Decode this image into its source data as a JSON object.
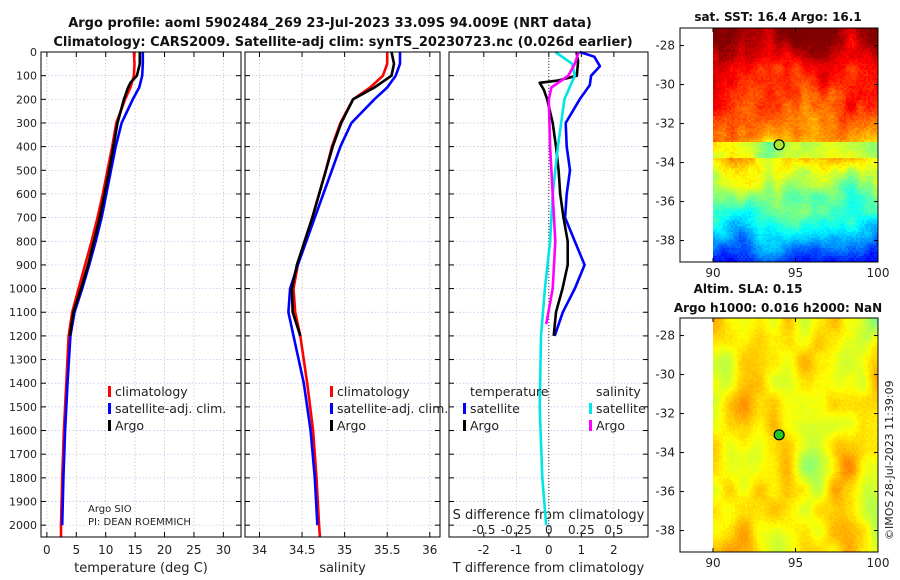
{
  "title_lines": [
    "Argo profile: aoml 5902484_269 23-Jul-2023 33.09S 94.009E (NRT data)",
    "Climatology: CARS2009. Satellite-adj clim: synTS_20230723.nc (0.026d earlier)"
  ],
  "colors": {
    "climatology": "#ff0000",
    "satellite": "#0000ff",
    "argo": "#000000",
    "sal_satellite": "#00e5e5",
    "sal_argo": "#ff00ff"
  },
  "depth_axis": {
    "ylim": [
      0,
      2050
    ],
    "ticks": [
      0,
      100,
      200,
      300,
      400,
      500,
      600,
      700,
      800,
      900,
      1000,
      1100,
      1200,
      1300,
      1400,
      1500,
      1600,
      1700,
      1800,
      1900,
      2000
    ]
  },
  "chart_data": [
    {
      "type": "line",
      "xlabel": "temperature (deg C)",
      "ylabel": "depth",
      "xlim": [
        -1,
        33
      ],
      "xticks": [
        0,
        5,
        10,
        15,
        20,
        25,
        30
      ],
      "legend": {
        "placement": "lower-middle",
        "entries": [
          "climatology",
          "satellite-adj. clim.",
          "Argo"
        ]
      },
      "annotation": [
        "Argo SIO",
        "PI: DEAN ROEMMICH"
      ],
      "series": [
        {
          "name": "climatology",
          "color": "#ff0000",
          "depth": [
            0,
            50,
            100,
            150,
            200,
            300,
            400,
            500,
            600,
            700,
            800,
            900,
            1000,
            1100,
            1200,
            1400,
            1600,
            1800,
            2000,
            2050
          ],
          "values": [
            14.8,
            14.9,
            14.8,
            14.2,
            13.3,
            11.8,
            11.1,
            10.3,
            9.5,
            8.6,
            7.6,
            6.5,
            5.4,
            4.3,
            3.7,
            3.3,
            2.9,
            2.6,
            2.4,
            2.4
          ]
        },
        {
          "name": "satellite-adj. clim.",
          "color": "#0000ff",
          "depth": [
            0,
            50,
            100,
            150,
            200,
            300,
            400,
            500,
            600,
            700,
            800,
            900,
            1000,
            1100,
            1200,
            1400,
            1600,
            1800,
            2000
          ],
          "values": [
            16.3,
            16.3,
            16.2,
            15.7,
            14.6,
            12.7,
            11.7,
            10.9,
            10.1,
            9.3,
            8.3,
            7.2,
            6.0,
            4.7,
            4.0,
            3.5,
            3.1,
            2.8,
            2.6
          ]
        },
        {
          "name": "Argo",
          "color": "#000000",
          "depth": [
            0,
            50,
            100,
            130,
            150,
            200,
            300,
            400,
            500,
            600,
            700,
            800,
            900,
            1000,
            1100,
            1200
          ],
          "values": [
            15.8,
            15.8,
            15.3,
            14.2,
            13.8,
            13.1,
            12.0,
            11.3,
            10.6,
            9.8,
            9.0,
            8.0,
            7.0,
            5.8,
            4.5,
            3.9
          ]
        }
      ]
    },
    {
      "type": "line",
      "xlabel": "salinity",
      "xlim": [
        33.83,
        36.12
      ],
      "xticks": [
        34,
        34.5,
        35,
        35.5,
        36
      ],
      "legend": {
        "placement": "lower-middle",
        "entries": [
          "climatology",
          "satellite-adj. clim.",
          "Argo"
        ]
      },
      "series": [
        {
          "name": "climatology",
          "color": "#ff0000",
          "depth": [
            0,
            50,
            100,
            150,
            200,
            300,
            400,
            500,
            600,
            700,
            800,
            900,
            1000,
            1100,
            1200,
            1400,
            1600,
            1800,
            2000,
            2050
          ],
          "values": [
            35.5,
            35.5,
            35.45,
            35.3,
            35.1,
            34.95,
            34.85,
            34.78,
            34.7,
            34.62,
            34.53,
            34.45,
            34.4,
            34.42,
            34.48,
            34.56,
            34.63,
            34.67,
            34.7,
            34.71
          ]
        },
        {
          "name": "satellite-adj. clim.",
          "color": "#0000ff",
          "depth": [
            0,
            50,
            100,
            150,
            200,
            300,
            400,
            500,
            600,
            700,
            800,
            900,
            1000,
            1100,
            1200,
            1400,
            1600,
            1800,
            2000
          ],
          "values": [
            35.65,
            35.65,
            35.6,
            35.5,
            35.35,
            35.08,
            34.95,
            34.85,
            34.75,
            34.65,
            34.55,
            34.45,
            34.36,
            34.34,
            34.4,
            34.52,
            34.6,
            34.65,
            34.68
          ]
        },
        {
          "name": "Argo",
          "color": "#000000",
          "depth": [
            0,
            50,
            100,
            150,
            200,
            300,
            400,
            500,
            600,
            700,
            800,
            900,
            1000,
            1100,
            1200
          ],
          "values": [
            35.55,
            35.58,
            35.55,
            35.35,
            35.1,
            34.96,
            34.86,
            34.78,
            34.7,
            34.62,
            34.53,
            34.44,
            34.38,
            34.39,
            34.48
          ]
        }
      ]
    },
    {
      "type": "line",
      "xlabel": "T difference from climatology",
      "xlim": [
        -3.07,
        3.05
      ],
      "xticks": [
        -2,
        -1,
        0,
        1,
        2
      ],
      "x2label": "S difference from climatology",
      "x2ticks": [
        -0.5,
        -0.25,
        0,
        0.25,
        0.5
      ],
      "x2ticklabels": [
        "-0.5",
        "-0.25",
        "0",
        "0.25",
        "0.5"
      ],
      "legend": {
        "placement": "lower-middle",
        "headers": [
          "temperature",
          "salinity"
        ],
        "entries": [
          "satellite",
          "Argo",
          "satellite",
          "Argo"
        ]
      },
      "series": [
        {
          "name": "temperature satellite",
          "axis": "T",
          "color": "#0000ff",
          "depth": [
            0,
            20,
            60,
            100,
            140,
            200,
            300,
            400,
            500,
            600,
            700,
            800,
            900,
            1000,
            1100,
            1200
          ],
          "values": [
            0.95,
            1.4,
            1.57,
            1.3,
            1.26,
            0.95,
            0.52,
            0.55,
            0.65,
            0.55,
            0.5,
            0.8,
            1.1,
            0.8,
            0.43,
            0.18
          ]
        },
        {
          "name": "temperature Argo",
          "axis": "T",
          "color": "#000000",
          "depth": [
            0,
            40,
            100,
            120,
            130,
            160,
            200,
            300,
            400,
            500,
            600,
            700,
            800,
            900,
            1000,
            1100,
            1200
          ],
          "values": [
            0.85,
            0.9,
            0.86,
            0.3,
            -0.28,
            -0.15,
            -0.05,
            0.12,
            0.22,
            0.3,
            0.35,
            0.45,
            0.58,
            0.58,
            0.42,
            0.22,
            0.15
          ]
        },
        {
          "name": "salinity satellite",
          "axis": "S",
          "color": "#00e5e5",
          "depth": [
            0,
            50,
            100,
            200,
            400,
            600,
            800,
            1000,
            1200,
            1500,
            1800,
            2000
          ],
          "values": [
            0.05,
            0.18,
            0.2,
            0.12,
            0.07,
            0.03,
            0.01,
            -0.03,
            -0.06,
            -0.07,
            -0.05,
            -0.02
          ]
        },
        {
          "name": "salinity Argo",
          "axis": "S",
          "color": "#ff00ff",
          "depth": [
            0,
            50,
            100,
            150,
            200,
            400,
            600,
            800,
            1000,
            1150
          ],
          "values": [
            0.23,
            0.2,
            0.15,
            0.02,
            0.0,
            0.01,
            0.03,
            0.05,
            0.03,
            -0.02
          ]
        }
      ]
    }
  ],
  "maps": [
    {
      "title": "sat. SST: 16.4 Argo: 16.1",
      "lon_ticks": [
        90,
        95,
        100
      ],
      "lat_ticks": [
        -28,
        -30,
        -32,
        -34,
        -36,
        -38
      ],
      "lon_range": [
        88,
        100
      ],
      "lat_range": [
        -27.1,
        -39.1
      ],
      "argo_lon": 94.009,
      "argo_lat": -33.09
    },
    {
      "title_lines": [
        "Altim. SLA: 0.15",
        "Argo h1000: 0.016 h2000: NaN"
      ],
      "lon_ticks": [
        90,
        95,
        100
      ],
      "lat_ticks": [
        -28,
        -30,
        -32,
        -34,
        -36,
        -38
      ],
      "lon_range": [
        88,
        100
      ],
      "lat_range": [
        -27.1,
        -39.1
      ],
      "argo_lon": 94.009,
      "argo_lat": -33.09
    }
  ],
  "credit": "©IMOS 28-Jul-2023 11:39:09"
}
